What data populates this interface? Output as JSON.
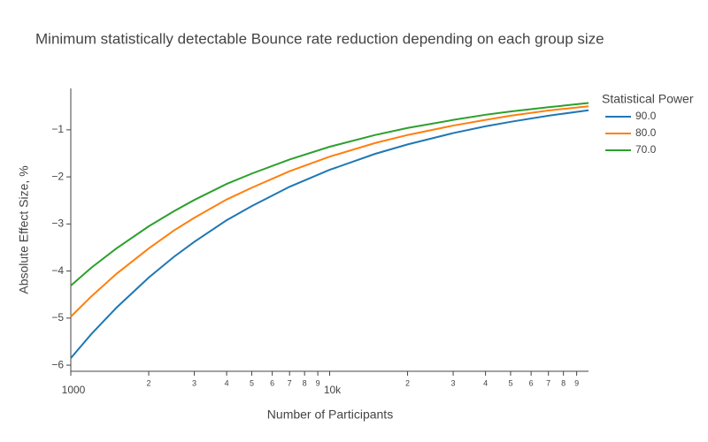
{
  "chart_data": {
    "type": "line",
    "title": "Minimum statistically detectable Bounce rate reduction depending on each group size",
    "x_label": "Number of Participants",
    "y_label": "Absolute Effect Size, %",
    "legend_title": "Statistical Power",
    "legend": "top-right-outside",
    "x_scale": "log",
    "grid": false,
    "x": [
      1000,
      1200,
      1500,
      2000,
      2500,
      3000,
      4000,
      5000,
      7000,
      10000,
      15000,
      20000,
      30000,
      40000,
      50000,
      70000,
      100000
    ],
    "series": [
      {
        "name": "90.0",
        "color": "#1f77b4",
        "values": [
          -5.85,
          -5.34,
          -4.78,
          -4.14,
          -3.7,
          -3.38,
          -2.92,
          -2.62,
          -2.21,
          -1.85,
          -1.51,
          -1.31,
          -1.07,
          -0.925,
          -0.83,
          -0.7,
          -0.585
        ]
      },
      {
        "name": "80.0",
        "color": "#ff7f0e",
        "values": [
          -4.97,
          -4.54,
          -4.06,
          -3.52,
          -3.14,
          -2.87,
          -2.48,
          -2.23,
          -1.88,
          -1.57,
          -1.28,
          -1.11,
          -0.91,
          -0.79,
          -0.7,
          -0.59,
          -0.5
        ]
      },
      {
        "name": "70.0",
        "color": "#2ca02c",
        "values": [
          -4.31,
          -3.93,
          -3.52,
          -3.05,
          -2.73,
          -2.49,
          -2.15,
          -1.93,
          -1.63,
          -1.36,
          -1.11,
          -0.96,
          -0.79,
          -0.68,
          -0.61,
          -0.52,
          -0.43
        ]
      }
    ],
    "xlim": [
      1000,
      100000
    ],
    "ylim": [
      -6.13,
      -0.12
    ],
    "xticks": [
      1000,
      {
        "value": 2000,
        "label": "2"
      },
      {
        "value": 3000,
        "label": "3"
      },
      {
        "value": 4000,
        "label": "4"
      },
      {
        "value": 5000,
        "label": "5"
      },
      {
        "value": 6000,
        "label": "6"
      },
      {
        "value": 7000,
        "label": "7"
      },
      {
        "value": 8000,
        "label": "8"
      },
      {
        "value": 9000,
        "label": "9"
      },
      {
        "value": 10000,
        "label": "10k"
      },
      {
        "value": 20000,
        "label": "2"
      },
      {
        "value": 30000,
        "label": "3"
      },
      {
        "value": 40000,
        "label": "4"
      },
      {
        "value": 50000,
        "label": "5"
      },
      {
        "value": 60000,
        "label": "6"
      },
      {
        "value": 70000,
        "label": "7"
      },
      {
        "value": 80000,
        "label": "8"
      },
      {
        "value": 90000,
        "label": "9"
      }
    ],
    "yticks": [
      {
        "value": -6,
        "label": "−6"
      },
      {
        "value": -5,
        "label": "−5"
      },
      {
        "value": -4,
        "label": "−4"
      },
      {
        "value": -3,
        "label": "−3"
      },
      {
        "value": -2,
        "label": "−2"
      },
      {
        "value": -1,
        "label": "−1"
      }
    ]
  }
}
